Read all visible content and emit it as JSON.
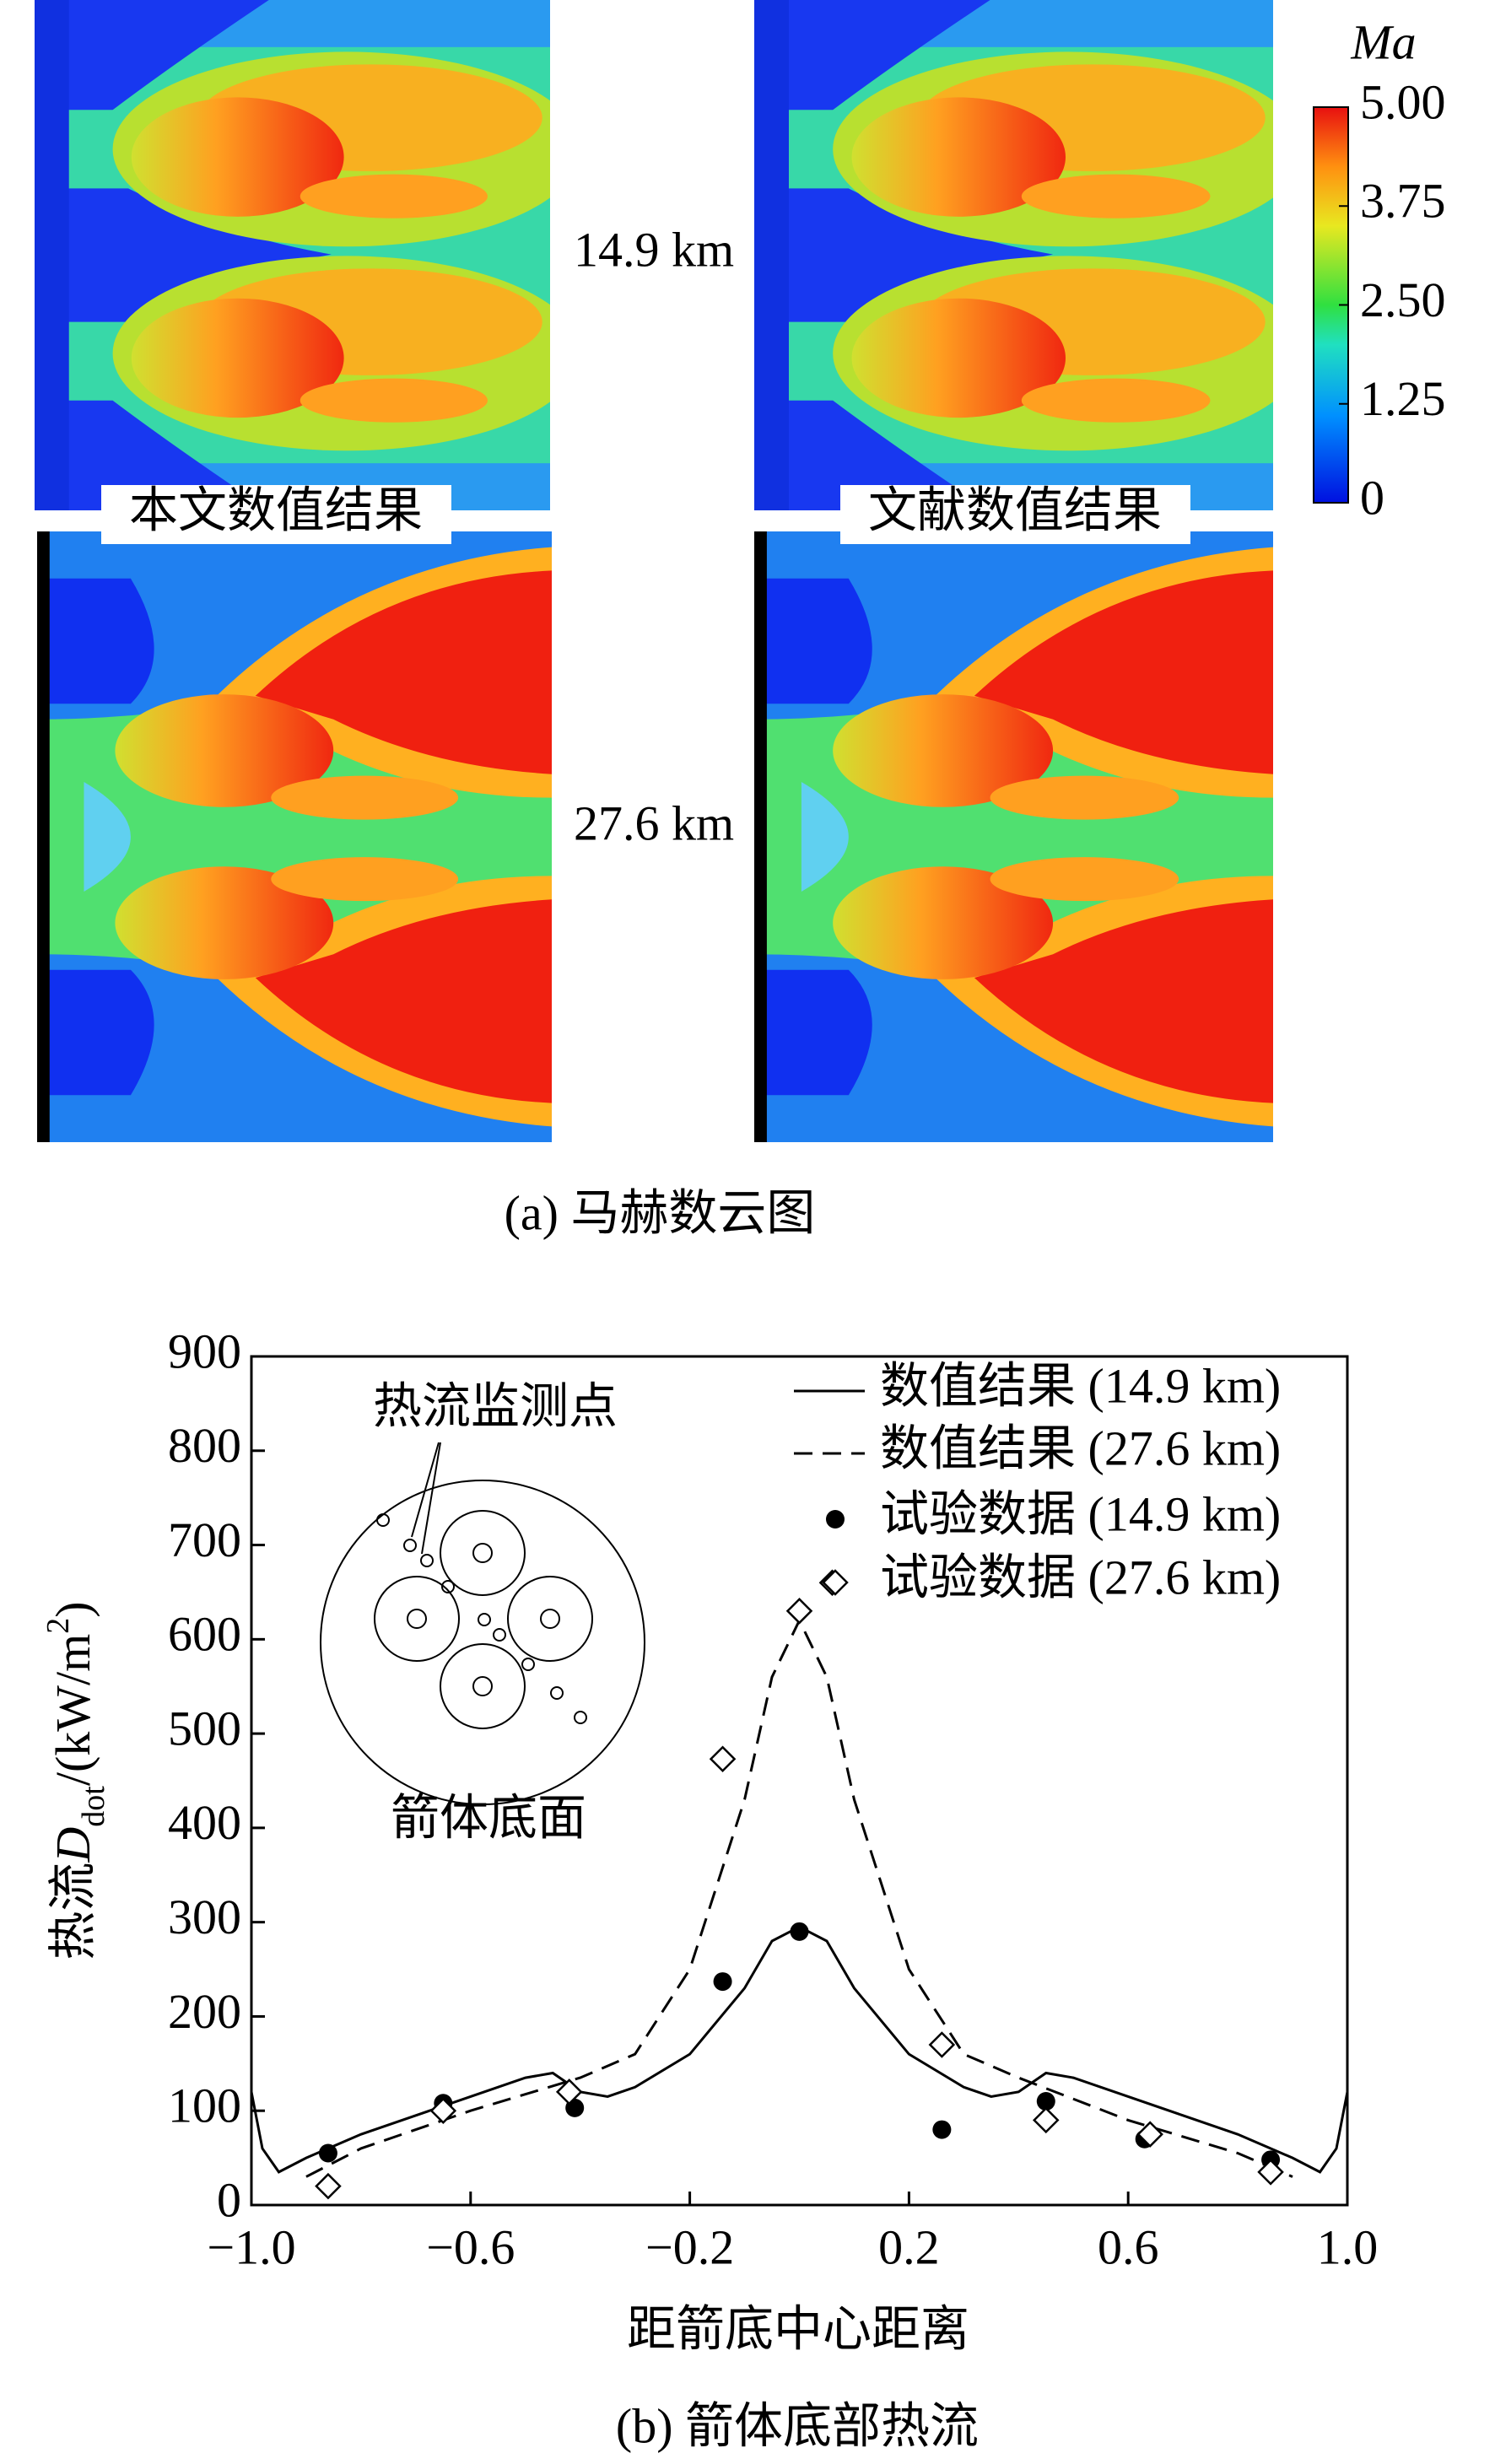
{
  "chart_data": [
    {
      "type": "contour",
      "panel_labels": [
        "本文数值结果",
        "文献数值结果"
      ],
      "altitude_labels": [
        "14.9 km",
        "27.6 km"
      ],
      "colorbar": {
        "label": "Ma",
        "lim": [
          0,
          5
        ],
        "ticks": [
          0,
          1.25,
          {
            "value": 2.5,
            "label": "2.50"
          },
          3.75,
          {
            "value": 5,
            "label": "5.00"
          }
        ]
      },
      "caption": "(a) 马赫数云图"
    },
    {
      "type": "line",
      "y_label": [
        "热流",
        "D",
        "dot",
        "/(kW/m",
        "2",
        ")"
      ],
      "x_label": "距箭底中心距离",
      "caption": "(b) 箭体底部热流",
      "inset_labels": [
        "热流监测点",
        "箭体底面"
      ],
      "xlim": [
        -1,
        1
      ],
      "xticks": [
        {
          "value": -1,
          "label": "−1.0"
        },
        {
          "value": -0.6,
          "label": "−0.6"
        },
        {
          "value": -0.2,
          "label": "−0.2"
        },
        0.2,
        0.6,
        {
          "value": 1,
          "label": "1.0"
        }
      ],
      "ylim": [
        0,
        900
      ],
      "yticks": [
        0,
        100,
        200,
        300,
        400,
        500,
        600,
        700,
        800,
        900
      ],
      "series": [
        {
          "name": "数值结果 (14.9 km)",
          "color": "#000000",
          "line": "solid",
          "x": [
            -1,
            -0.98,
            -0.95,
            -0.9,
            -0.8,
            -0.7,
            -0.6,
            -0.5,
            -0.45,
            -0.4,
            -0.35,
            -0.3,
            -0.2,
            -0.1,
            -0.05,
            0,
            0.05,
            0.1,
            0.2,
            0.3,
            0.35,
            0.4,
            0.45,
            0.5,
            0.6,
            0.7,
            0.8,
            0.9,
            0.95,
            0.98,
            1
          ],
          "values": [
            120,
            60,
            35,
            50,
            75,
            95,
            115,
            135,
            140,
            120,
            115,
            125,
            160,
            230,
            280,
            295,
            280,
            230,
            160,
            125,
            115,
            120,
            140,
            135,
            115,
            95,
            75,
            50,
            35,
            60,
            120
          ]
        },
        {
          "name": "数值结果 (27.6 km)",
          "color": "#000000",
          "line": "dashed",
          "x": [
            -0.9,
            -0.8,
            -0.6,
            -0.4,
            -0.3,
            -0.2,
            -0.1,
            -0.05,
            0,
            0.05,
            0.1,
            0.2,
            0.3,
            0.4,
            0.6,
            0.8,
            0.9
          ],
          "values": [
            30,
            60,
            100,
            135,
            160,
            250,
            430,
            560,
            620,
            560,
            430,
            250,
            160,
            135,
            90,
            55,
            30
          ]
        },
        {
          "name": "试验数据 (14.9 km)",
          "color": "#000000",
          "marker": "filled-circle",
          "x": [
            -0.86,
            -0.65,
            -0.41,
            -0.14,
            0,
            0.26,
            0.45,
            0.63,
            0.86
          ],
          "values": [
            55,
            108,
            103,
            237,
            290,
            80,
            110,
            70,
            48
          ]
        },
        {
          "name": "试验数据 (27.6 km)",
          "color": "#000000",
          "marker": "open-diamond",
          "x": [
            -0.86,
            -0.65,
            -0.42,
            -0.14,
            0,
            0.06,
            0.26,
            0.45,
            0.64,
            0.86
          ],
          "values": [
            20,
            100,
            120,
            473,
            630,
            660,
            170,
            90,
            75,
            35
          ]
        }
      ]
    }
  ]
}
